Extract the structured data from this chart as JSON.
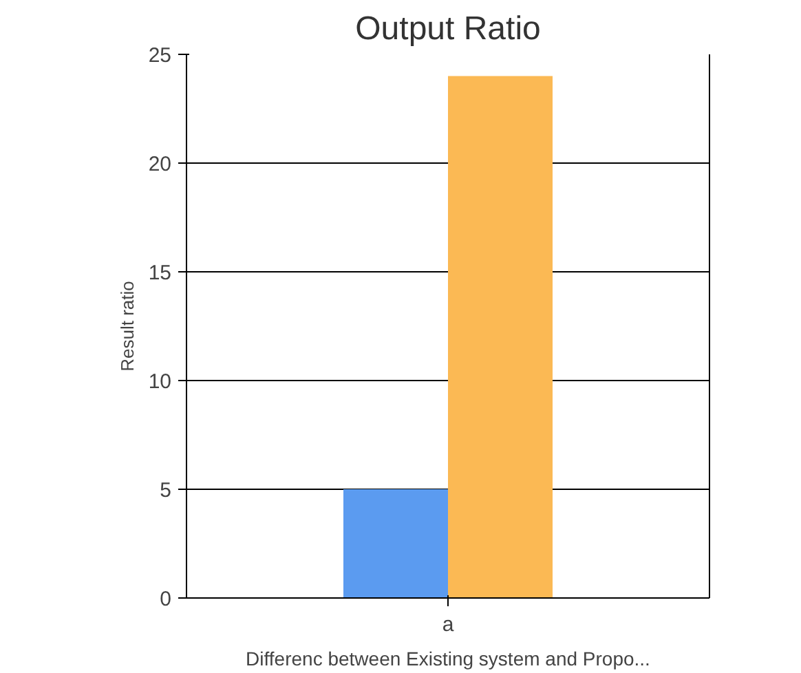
{
  "chart_data": {
    "type": "bar",
    "title": "Output Ratio",
    "xlabel": "Differenc between Existing system and Propo...",
    "ylabel": "Result ratio",
    "categories": [
      "a"
    ],
    "series": [
      {
        "color": "#5b9bf0",
        "values": [
          5
        ]
      },
      {
        "color": "#fbb954",
        "values": [
          24
        ]
      }
    ],
    "ylim": [
      0,
      25
    ],
    "yticks": [
      0,
      5,
      10,
      15,
      20,
      25
    ],
    "grid": "y"
  }
}
